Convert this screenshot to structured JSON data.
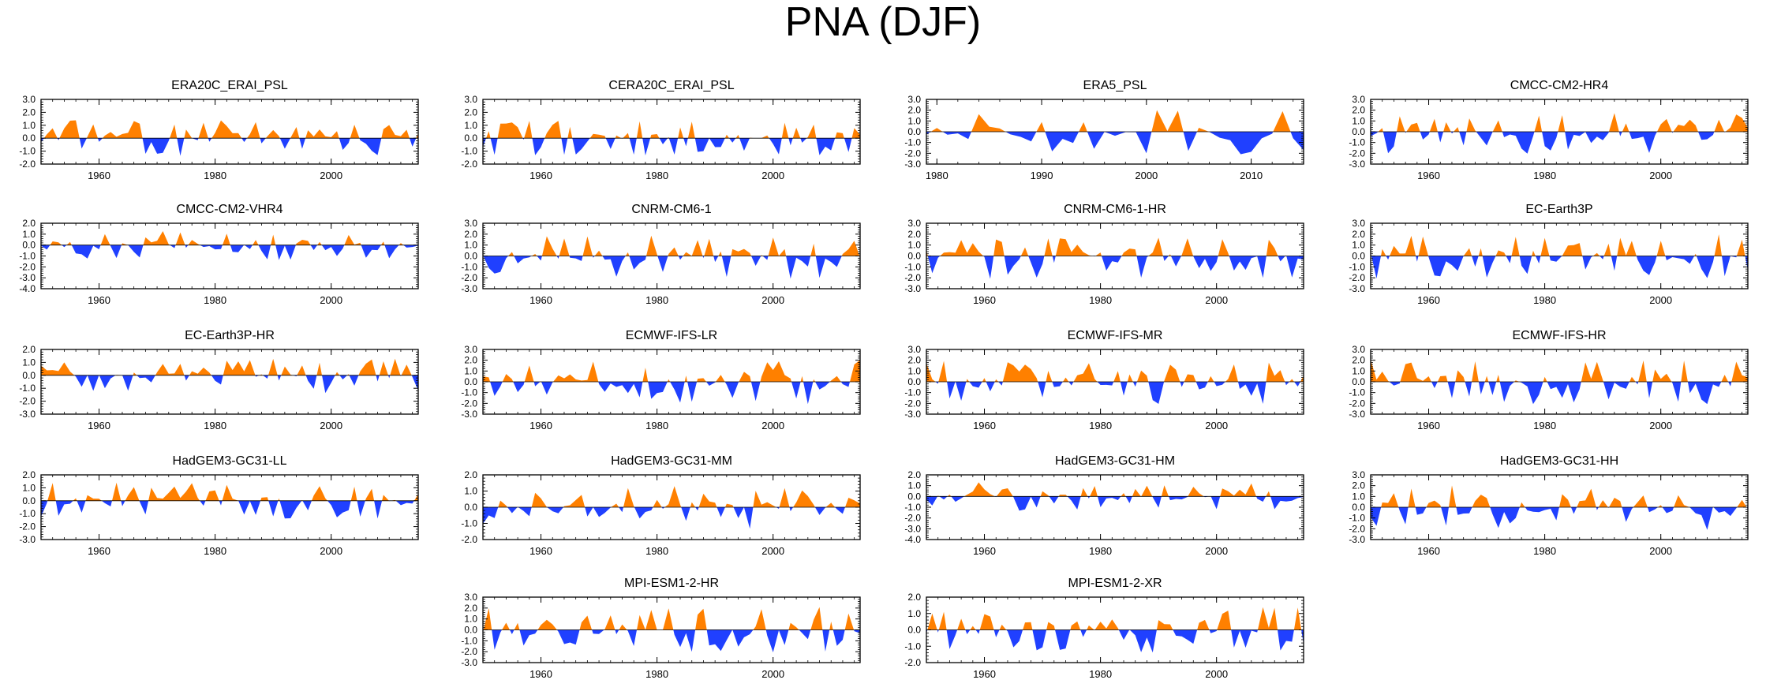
{
  "title": "PNA (DJF)",
  "colors": {
    "positive": "#ff8000",
    "negative": "#2040ff"
  },
  "chart_data": [
    {
      "type": "area",
      "title": "ERA20C_ERAI_PSL",
      "x_start": 1950,
      "x_end": 2015,
      "x_ticks": [
        1960,
        1980,
        2000
      ],
      "ylim": [
        -2,
        3
      ],
      "y_tick_labels": [
        "3.0",
        "2.0",
        "1.0",
        "0.0",
        "-1.0",
        "-2.0"
      ],
      "seed": 11
    },
    {
      "type": "area",
      "title": "CERA20C_ERAI_PSL",
      "x_start": 1950,
      "x_end": 2015,
      "x_ticks": [
        1960,
        1980,
        2000
      ],
      "ylim": [
        -2,
        3
      ],
      "y_tick_labels": [
        "3.0",
        "2.0",
        "1.0",
        "0.0",
        "-1.0",
        "-2.0"
      ],
      "seed": 12
    },
    {
      "type": "area",
      "title": "ERA5_PSL",
      "x_start": 1979,
      "x_end": 2015,
      "x_ticks": [
        1980,
        1990,
        2000,
        2010
      ],
      "ylim": [
        -3,
        3
      ],
      "y_tick_labels": [
        "3.0",
        "2.0",
        "1.0",
        "0.0",
        "-1.0",
        "-2.0",
        "-3.0"
      ],
      "seed": 13
    },
    {
      "type": "area",
      "title": "CMCC-CM2-HR4",
      "x_start": 1950,
      "x_end": 2015,
      "x_ticks": [
        1960,
        1980,
        2000
      ],
      "ylim": [
        -3,
        3
      ],
      "y_tick_labels": [
        "3.0",
        "2.0",
        "1.0",
        "0.0",
        "-1.0",
        "-2.0",
        "-3.0"
      ],
      "seed": 14
    },
    {
      "type": "area",
      "title": "CMCC-CM2-VHR4",
      "x_start": 1950,
      "x_end": 2015,
      "x_ticks": [
        1960,
        1980,
        2000
      ],
      "ylim": [
        -4,
        2
      ],
      "y_tick_labels": [
        "2.0",
        "1.0",
        "0.0",
        "-1.0",
        "-2.0",
        "-3.0",
        "-4.0"
      ],
      "seed": 15
    },
    {
      "type": "area",
      "title": "CNRM-CM6-1",
      "x_start": 1950,
      "x_end": 2015,
      "x_ticks": [
        1960,
        1980,
        2000
      ],
      "ylim": [
        -3,
        3
      ],
      "y_tick_labels": [
        "3.0",
        "2.0",
        "1.0",
        "0.0",
        "-1.0",
        "-2.0",
        "-3.0"
      ],
      "seed": 16
    },
    {
      "type": "area",
      "title": "CNRM-CM6-1-HR",
      "x_start": 1950,
      "x_end": 2015,
      "x_ticks": [
        1960,
        1980,
        2000
      ],
      "ylim": [
        -3,
        3
      ],
      "y_tick_labels": [
        "3.0",
        "2.0",
        "1.0",
        "0.0",
        "-1.0",
        "-2.0",
        "-3.0"
      ],
      "seed": 17
    },
    {
      "type": "area",
      "title": "EC-Earth3P",
      "x_start": 1950,
      "x_end": 2015,
      "x_ticks": [
        1960,
        1980,
        2000
      ],
      "ylim": [
        -3,
        3
      ],
      "y_tick_labels": [
        "3.0",
        "2.0",
        "1.0",
        "0.0",
        "-1.0",
        "-2.0",
        "-3.0"
      ],
      "seed": 18
    },
    {
      "type": "area",
      "title": "EC-Earth3P-HR",
      "x_start": 1950,
      "x_end": 2015,
      "x_ticks": [
        1960,
        1980,
        2000
      ],
      "ylim": [
        -3,
        2
      ],
      "y_tick_labels": [
        "2.0",
        "1.0",
        "0.0",
        "-1.0",
        "-2.0",
        "-3.0"
      ],
      "seed": 19
    },
    {
      "type": "area",
      "title": "ECMWF-IFS-LR",
      "x_start": 1950,
      "x_end": 2015,
      "x_ticks": [
        1960,
        1980,
        2000
      ],
      "ylim": [
        -3,
        3
      ],
      "y_tick_labels": [
        "3.0",
        "2.0",
        "1.0",
        "0.0",
        "-1.0",
        "-2.0",
        "-3.0"
      ],
      "seed": 20
    },
    {
      "type": "area",
      "title": "ECMWF-IFS-MR",
      "x_start": 1950,
      "x_end": 2015,
      "x_ticks": [
        1960,
        1980,
        2000
      ],
      "ylim": [
        -3,
        3
      ],
      "y_tick_labels": [
        "3.0",
        "2.0",
        "1.0",
        "0.0",
        "-1.0",
        "-2.0",
        "-3.0"
      ],
      "seed": 21
    },
    {
      "type": "area",
      "title": "ECMWF-IFS-HR",
      "x_start": 1950,
      "x_end": 2015,
      "x_ticks": [
        1960,
        1980,
        2000
      ],
      "ylim": [
        -3,
        3
      ],
      "y_tick_labels": [
        "3.0",
        "2.0",
        "1.0",
        "0.0",
        "-1.0",
        "-2.0",
        "-3.0"
      ],
      "seed": 22
    },
    {
      "type": "area",
      "title": "HadGEM3-GC31-LL",
      "x_start": 1950,
      "x_end": 2015,
      "x_ticks": [
        1960,
        1980,
        2000
      ],
      "ylim": [
        -3,
        2
      ],
      "y_tick_labels": [
        "2.0",
        "1.0",
        "0.0",
        "-1.0",
        "-2.0",
        "-3.0"
      ],
      "seed": 23
    },
    {
      "type": "area",
      "title": "HadGEM3-GC31-MM",
      "x_start": 1950,
      "x_end": 2015,
      "x_ticks": [
        1960,
        1980,
        2000
      ],
      "ylim": [
        -2,
        2
      ],
      "y_tick_labels": [
        "2.0",
        "1.0",
        "0.0",
        "-1.0",
        "-2.0"
      ],
      "seed": 24
    },
    {
      "type": "area",
      "title": "HadGEM3-GC31-HM",
      "x_start": 1950,
      "x_end": 2015,
      "x_ticks": [
        1960,
        1980,
        2000
      ],
      "ylim": [
        -4,
        2
      ],
      "y_tick_labels": [
        "2.0",
        "1.0",
        "0.0",
        "-1.0",
        "-2.0",
        "-3.0",
        "-4.0"
      ],
      "seed": 25
    },
    {
      "type": "area",
      "title": "HadGEM3-GC31-HH",
      "x_start": 1950,
      "x_end": 2015,
      "x_ticks": [
        1960,
        1980,
        2000
      ],
      "ylim": [
        -3,
        3
      ],
      "y_tick_labels": [
        "3.0",
        "2.0",
        "1.0",
        "0.0",
        "-1.0",
        "-2.0",
        "-3.0"
      ],
      "seed": 26
    },
    {
      "type": "area",
      "title": "MPI-ESM1-2-HR",
      "x_start": 1950,
      "x_end": 2015,
      "x_ticks": [
        1960,
        1980,
        2000
      ],
      "ylim": [
        -3,
        3
      ],
      "y_tick_labels": [
        "3.0",
        "2.0",
        "1.0",
        "0.0",
        "-1.0",
        "-2.0",
        "-3.0"
      ],
      "seed": 27
    },
    {
      "type": "area",
      "title": "MPI-ESM1-2-XR",
      "x_start": 1950,
      "x_end": 2015,
      "x_ticks": [
        1960,
        1980,
        2000
      ],
      "ylim": [
        -2,
        2
      ],
      "y_tick_labels": [
        "2.0",
        "1.0",
        "0.0",
        "-1.0",
        "-2.0"
      ],
      "seed": 28
    }
  ]
}
